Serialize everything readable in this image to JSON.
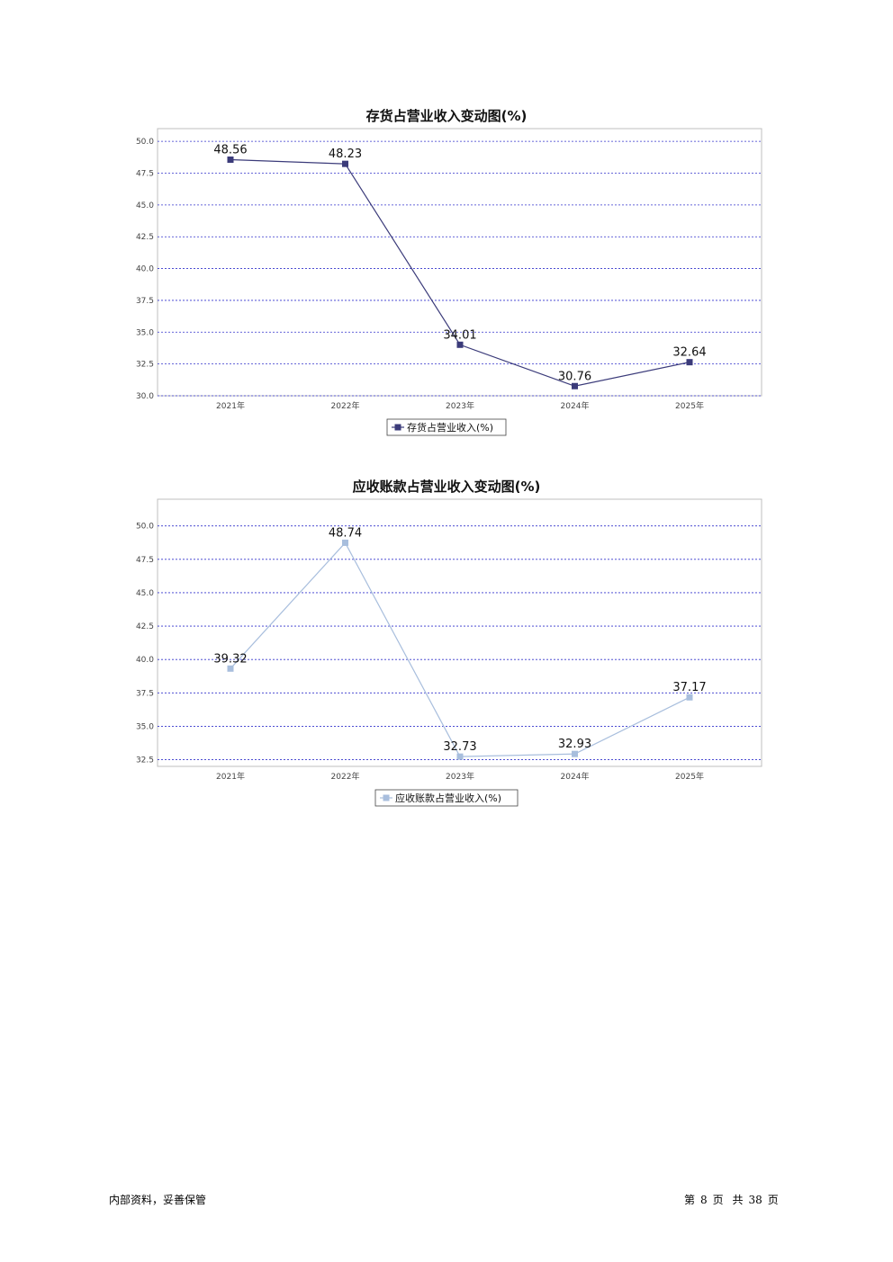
{
  "chart_data": [
    {
      "type": "line",
      "title": "存货占营业收入变动图(%)",
      "categories": [
        "2021年",
        "2022年",
        "2023年",
        "2024年",
        "2025年"
      ],
      "series": [
        {
          "name": "存货占营业收入(%)",
          "values": [
            48.56,
            48.23,
            34.01,
            30.76,
            32.64
          ],
          "color": "#3b3b7a"
        }
      ],
      "ylim": [
        30.0,
        51.0
      ],
      "yticks": [
        "30.0",
        "32.5",
        "35.0",
        "37.5",
        "40.0",
        "42.5",
        "45.0",
        "47.5",
        "50.0"
      ],
      "data_labels": [
        "48.56",
        "48.23",
        "34.01",
        "30.76",
        "32.64"
      ],
      "grid": true,
      "legend": "bottom-center"
    },
    {
      "type": "line",
      "title": "应收账款占营业收入变动图(%)",
      "categories": [
        "2021年",
        "2022年",
        "2023年",
        "2024年",
        "2025年"
      ],
      "series": [
        {
          "name": "应收账款占营业收入(%)",
          "values": [
            39.32,
            48.74,
            32.73,
            32.93,
            37.17
          ],
          "color": "#a8bedd"
        }
      ],
      "ylim": [
        32.0,
        52.0
      ],
      "yticks": [
        "32.5",
        "35.0",
        "37.5",
        "40.0",
        "42.5",
        "45.0",
        "47.5",
        "50.0"
      ],
      "data_labels": [
        "39.32",
        "48.74",
        "32.73",
        "32.93",
        "37.17"
      ],
      "grid": true,
      "legend": "bottom-center"
    }
  ],
  "footer": {
    "left": "内部资料，妥善保管",
    "page_prefix": "第",
    "page_number": "8",
    "page_unit": "页",
    "total_prefix": "共",
    "total_pages": "38",
    "total_unit": "页"
  }
}
